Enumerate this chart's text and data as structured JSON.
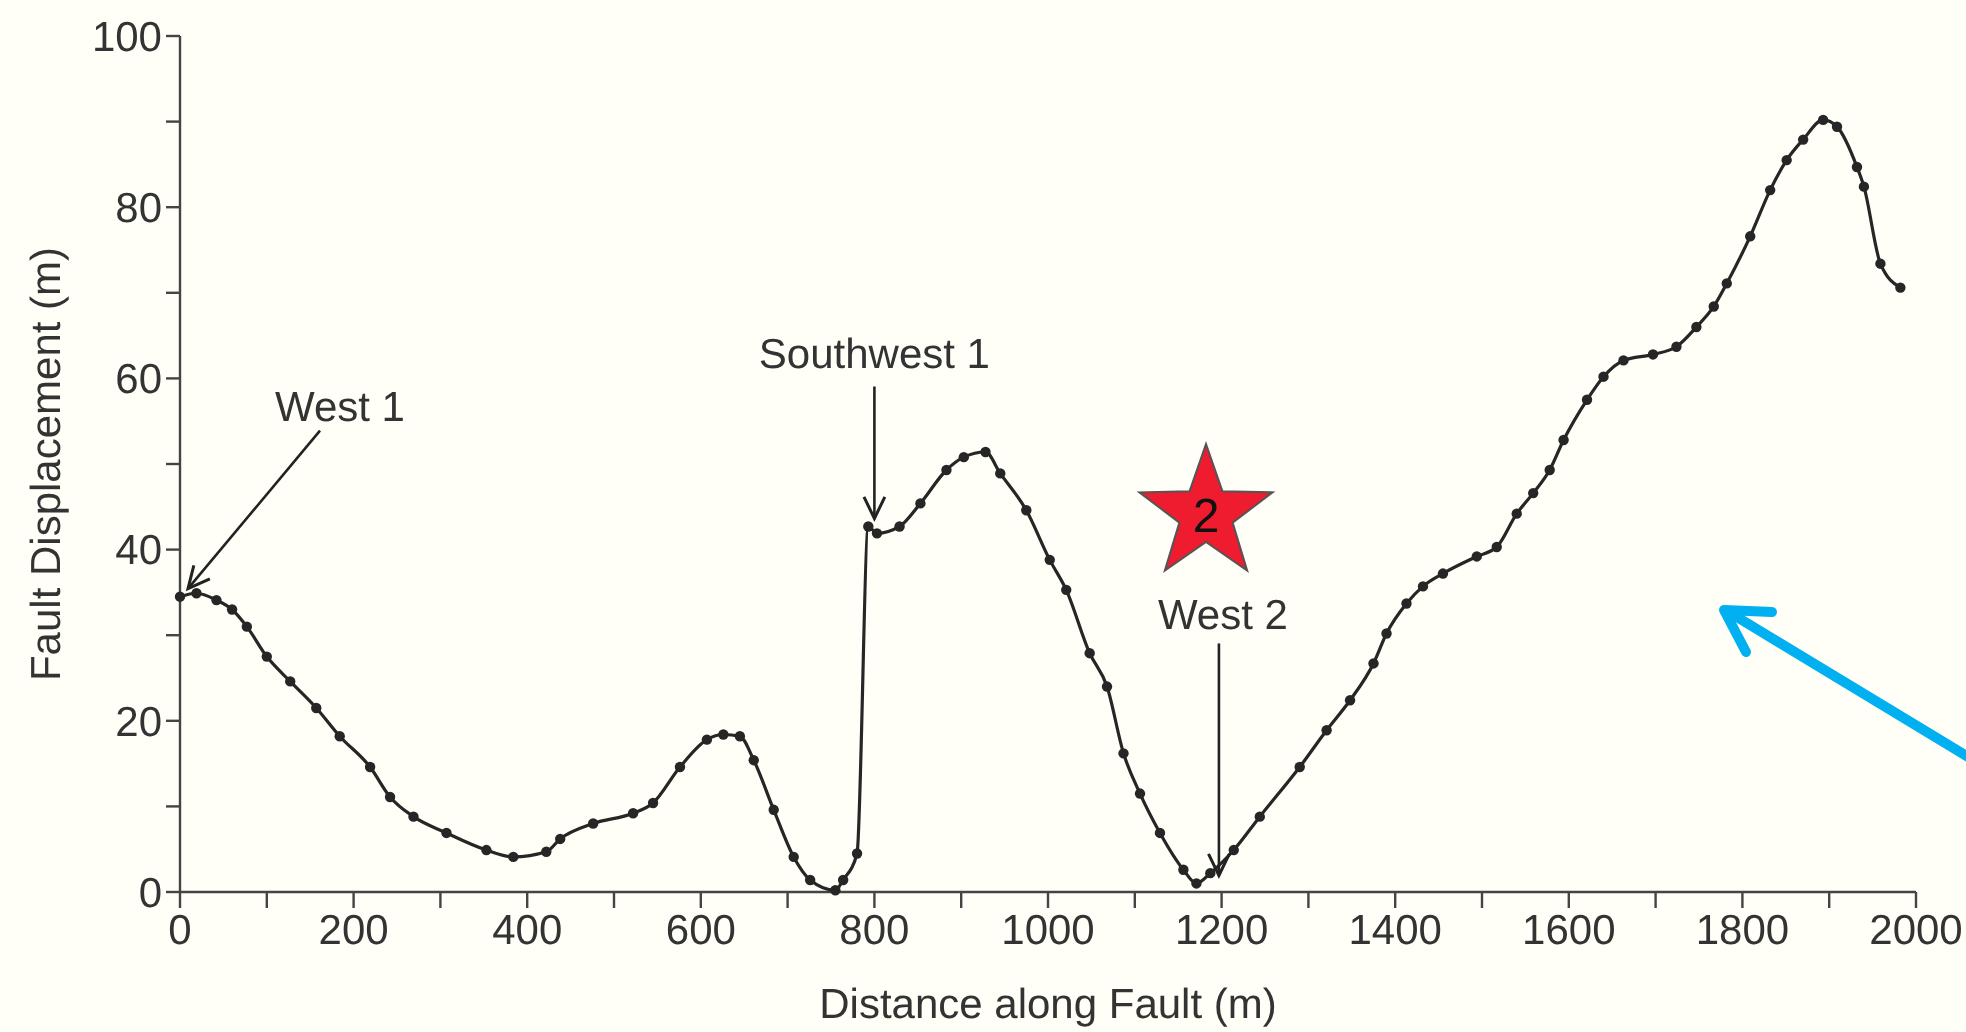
{
  "chart_data": {
    "type": "line",
    "xlabel": "Distance along Fault (m)",
    "ylabel": "Fault Displacement (m)",
    "xlim": [
      0,
      2000
    ],
    "ylim": [
      0,
      100
    ],
    "xticks": [
      0,
      {
        "value": 100,
        "label": null
      },
      200,
      {
        "value": 300,
        "label": null
      },
      400,
      {
        "value": 500,
        "label": null
      },
      600,
      {
        "value": 700,
        "label": null
      },
      800,
      {
        "value": 900,
        "label": null
      },
      1000,
      {
        "value": 1100,
        "label": null
      },
      1200,
      {
        "value": 1300,
        "label": null
      },
      1400,
      {
        "value": 1500,
        "label": null
      },
      1600,
      {
        "value": 1700,
        "label": null
      },
      1800,
      {
        "value": 1900,
        "label": null
      },
      2000
    ],
    "yticks": [
      0,
      {
        "value": 10,
        "label": null
      },
      20,
      {
        "value": 30,
        "label": null
      },
      40,
      {
        "value": 50,
        "label": null
      },
      60,
      {
        "value": 70,
        "label": null
      },
      80,
      {
        "value": 90,
        "label": null
      },
      100
    ],
    "marker": "circle",
    "line_style": "solid",
    "grid": false,
    "series": [
      {
        "color": "#262626",
        "x": [
          0,
          19,
          42,
          60,
          77,
          100,
          127,
          157,
          184,
          219,
          242,
          269,
          307,
          353,
          384,
          422,
          438,
          476,
          522,
          545,
          576,
          607,
          626,
          645,
          661,
          684,
          707,
          726,
          755,
          764,
          780,
          793,
          803,
          829,
          853,
          883,
          903,
          928,
          945,
          975,
          1002,
          1021,
          1048,
          1068,
          1087,
          1106,
          1129,
          1156,
          1171,
          1187,
          1214,
          1244,
          1290,
          1321,
          1348,
          1375,
          1390,
          1413,
          1432,
          1455,
          1494,
          1517,
          1540,
          1559,
          1578,
          1594,
          1621,
          1640,
          1663,
          1697,
          1724,
          1747,
          1767,
          1782,
          1809,
          1832,
          1851,
          1870,
          1893,
          1909,
          1932,
          1940,
          1959,
          1982
        ],
        "values": [
          34.5,
          34.9,
          34.1,
          33,
          31,
          27.5,
          24.6,
          21.5,
          18.2,
          14.6,
          11.1,
          8.8,
          6.9,
          4.9,
          4.1,
          4.7,
          6.2,
          8,
          9.2,
          10.4,
          14.6,
          17.8,
          18.4,
          18.2,
          15.4,
          9.6,
          4.1,
          1.4,
          0.2,
          1.4,
          4.5,
          42.7,
          41.9,
          42.7,
          45.4,
          49.3,
          50.8,
          51.4,
          48.9,
          44.6,
          38.8,
          35.3,
          27.9,
          24,
          16.2,
          11.5,
          6.9,
          2.6,
          1,
          2.2,
          4.9,
          8.8,
          14.6,
          18.9,
          22.4,
          26.7,
          30.2,
          33.7,
          35.7,
          37.2,
          39.2,
          40.3,
          44.2,
          46.6,
          49.3,
          52.8,
          57.5,
          60.2,
          62.1,
          62.8,
          63.7,
          66,
          68.4,
          71.1,
          76.6,
          82,
          85.5,
          87.9,
          90.2,
          89.4,
          84.7,
          82.4,
          73.4,
          70.6
        ]
      }
    ],
    "annotations": [
      {
        "text": "West 1",
        "x": 0,
        "y": 34.5
      },
      {
        "text": "Southwest 1",
        "x": 800,
        "y": 42.7
      },
      {
        "text": "West 2",
        "x": 1190,
        "y": 1
      },
      "2"
    ]
  }
}
